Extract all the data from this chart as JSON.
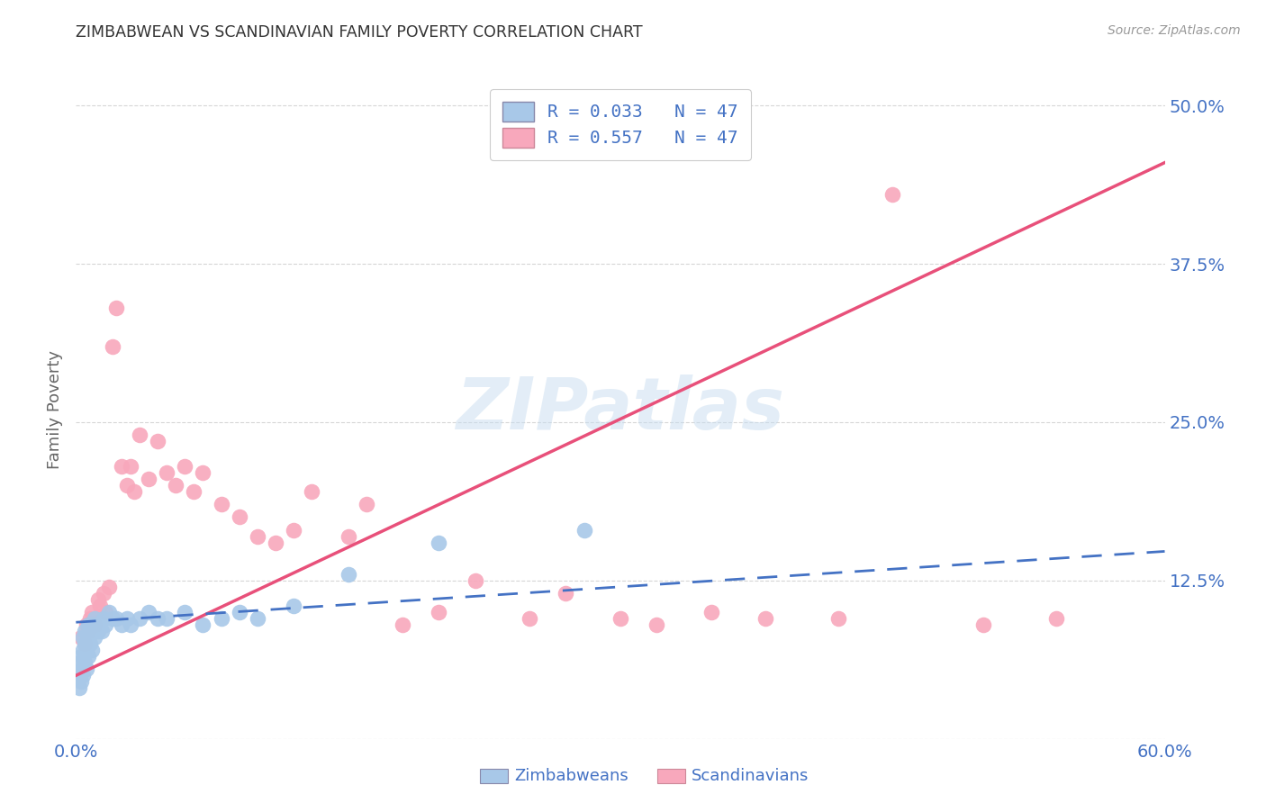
{
  "title": "ZIMBABWEAN VS SCANDINAVIAN FAMILY POVERTY CORRELATION CHART",
  "source": "Source: ZipAtlas.com",
  "ylabel": "Family Poverty",
  "xlim": [
    0.0,
    0.6
  ],
  "ylim": [
    0.0,
    0.52
  ],
  "yticks": [
    0.0,
    0.125,
    0.25,
    0.375,
    0.5
  ],
  "yticklabels": [
    "",
    "12.5%",
    "25.0%",
    "37.5%",
    "50.0%"
  ],
  "watermark": "ZIPatlas",
  "legend_r1": "R = 0.033   N = 47",
  "legend_r2": "R = 0.557   N = 47",
  "zim_color": "#a8c8e8",
  "scan_color": "#f8a8bc",
  "zim_line_color": "#4472c4",
  "scan_line_color": "#e8507a",
  "tick_color": "#4472c4",
  "grid_color": "#cccccc",
  "zim_x": [
    0.001,
    0.002,
    0.002,
    0.003,
    0.003,
    0.003,
    0.004,
    0.004,
    0.004,
    0.005,
    0.005,
    0.005,
    0.006,
    0.006,
    0.007,
    0.007,
    0.008,
    0.008,
    0.009,
    0.009,
    0.01,
    0.01,
    0.011,
    0.012,
    0.013,
    0.014,
    0.015,
    0.016,
    0.018,
    0.02,
    0.022,
    0.025,
    0.028,
    0.03,
    0.035,
    0.04,
    0.045,
    0.05,
    0.06,
    0.07,
    0.08,
    0.09,
    0.1,
    0.12,
    0.15,
    0.2,
    0.28
  ],
  "zim_y": [
    0.05,
    0.06,
    0.04,
    0.055,
    0.065,
    0.045,
    0.07,
    0.08,
    0.05,
    0.085,
    0.06,
    0.075,
    0.07,
    0.055,
    0.09,
    0.065,
    0.085,
    0.075,
    0.09,
    0.07,
    0.095,
    0.08,
    0.09,
    0.085,
    0.09,
    0.085,
    0.095,
    0.09,
    0.1,
    0.095,
    0.095,
    0.09,
    0.095,
    0.09,
    0.095,
    0.1,
    0.095,
    0.095,
    0.1,
    0.09,
    0.095,
    0.1,
    0.095,
    0.105,
    0.13,
    0.155,
    0.165
  ],
  "scan_x": [
    0.003,
    0.005,
    0.006,
    0.007,
    0.008,
    0.009,
    0.01,
    0.012,
    0.013,
    0.015,
    0.016,
    0.018,
    0.02,
    0.022,
    0.025,
    0.028,
    0.03,
    0.032,
    0.035,
    0.04,
    0.045,
    0.05,
    0.055,
    0.06,
    0.065,
    0.07,
    0.08,
    0.09,
    0.1,
    0.11,
    0.12,
    0.13,
    0.15,
    0.16,
    0.18,
    0.2,
    0.22,
    0.25,
    0.27,
    0.3,
    0.32,
    0.35,
    0.38,
    0.42,
    0.45,
    0.5,
    0.54
  ],
  "scan_y": [
    0.08,
    0.075,
    0.09,
    0.085,
    0.095,
    0.1,
    0.09,
    0.11,
    0.105,
    0.115,
    0.1,
    0.12,
    0.31,
    0.34,
    0.215,
    0.2,
    0.215,
    0.195,
    0.24,
    0.205,
    0.235,
    0.21,
    0.2,
    0.215,
    0.195,
    0.21,
    0.185,
    0.175,
    0.16,
    0.155,
    0.165,
    0.195,
    0.16,
    0.185,
    0.09,
    0.1,
    0.125,
    0.095,
    0.115,
    0.095,
    0.09,
    0.1,
    0.095,
    0.095,
    0.43,
    0.09,
    0.095
  ],
  "scan_line_x0": 0.0,
  "scan_line_x1": 0.6,
  "scan_line_y0": 0.05,
  "scan_line_y1": 0.455,
  "zim_line_x0": 0.0,
  "zim_line_x1": 0.6,
  "zim_line_y0": 0.092,
  "zim_line_y1": 0.148
}
